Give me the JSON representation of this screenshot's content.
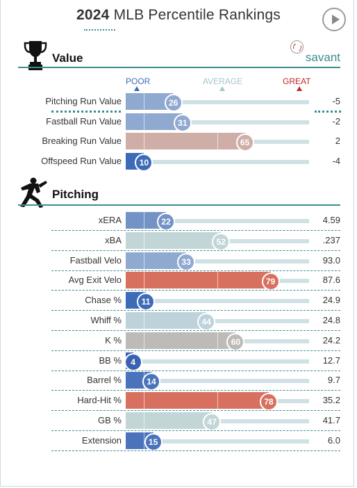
{
  "header": {
    "year": "2024",
    "title": "MLB Percentile Rankings"
  },
  "scale": {
    "poor": "POOR",
    "average": "AVERAGE",
    "great": "GREAT"
  },
  "sections": {
    "value_label": "Value",
    "pitching_label": "Pitching",
    "brand": "savant"
  },
  "colors": {
    "poor": "#3d6bb8",
    "below": "#8fa9d1",
    "average": "#c2d6d8",
    "above": "#cfaea8",
    "neutral": "#bdbbb8",
    "great": "#d8705f",
    "accent": "#3c8c91"
  },
  "chart_data": {
    "type": "bar",
    "title": "2024 MLB Percentile Rankings",
    "xlim": [
      0,
      100
    ],
    "groups": [
      {
        "name": "Value",
        "metrics": [
          {
            "name": "Pitching Run Value",
            "percentile": 26,
            "value": "-5",
            "color": "#8fa9d1"
          },
          {
            "name": "Fastball Run Value",
            "percentile": 31,
            "value": "-2",
            "color": "#8fa9d1"
          },
          {
            "name": "Breaking Run Value",
            "percentile": 65,
            "value": "2",
            "color": "#cfaea8"
          },
          {
            "name": "Offspeed Run Value",
            "percentile": 10,
            "value": "-4",
            "color": "#3d6bb8"
          }
        ]
      },
      {
        "name": "Pitching",
        "metrics": [
          {
            "name": "xERA",
            "percentile": 22,
            "value": "4.59",
            "color": "#7393c7"
          },
          {
            "name": "xBA",
            "percentile": 52,
            "value": ".237",
            "color": "#c2d6d8"
          },
          {
            "name": "Fastball Velo",
            "percentile": 33,
            "value": "93.0",
            "color": "#8fa9d1"
          },
          {
            "name": "Avg Exit Velo",
            "percentile": 79,
            "value": "87.6",
            "color": "#d8705f"
          },
          {
            "name": "Chase %",
            "percentile": 11,
            "value": "24.9",
            "color": "#3d6bb8"
          },
          {
            "name": "Whiff %",
            "percentile": 44,
            "value": "24.8",
            "color": "#bed2db"
          },
          {
            "name": "K %",
            "percentile": 60,
            "value": "24.2",
            "color": "#bdbbb8"
          },
          {
            "name": "BB %",
            "percentile": 4,
            "value": "12.7",
            "color": "#3b62b0"
          },
          {
            "name": "Barrel %",
            "percentile": 14,
            "value": "9.7",
            "color": "#4a73bb"
          },
          {
            "name": "Hard-Hit %",
            "percentile": 78,
            "value": "35.2",
            "color": "#d8705f"
          },
          {
            "name": "GB %",
            "percentile": 47,
            "value": "41.7",
            "color": "#c2d6d8"
          },
          {
            "name": "Extension",
            "percentile": 15,
            "value": "6.0",
            "color": "#4a73bb"
          }
        ]
      }
    ]
  }
}
